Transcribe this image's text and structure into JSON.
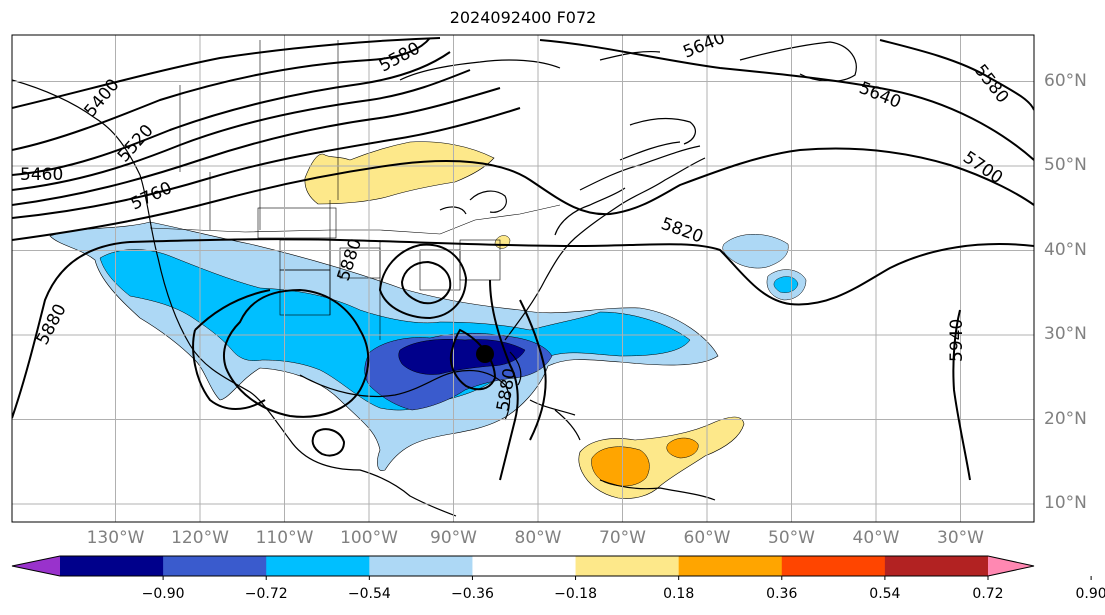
{
  "title": "2024092400 F072",
  "lat_labels": [
    {
      "text": "60°N",
      "lat": 60
    },
    {
      "text": "50°N",
      "lat": 50
    },
    {
      "text": "40°N",
      "lat": 40
    },
    {
      "text": "30°N",
      "lat": 30
    },
    {
      "text": "20°N",
      "lat": 20
    },
    {
      "text": "10°N",
      "lat": 10
    }
  ],
  "lon_labels": [
    {
      "text": "130°W",
      "lon": -130
    },
    {
      "text": "120°W",
      "lon": -120
    },
    {
      "text": "110°W",
      "lon": -110
    },
    {
      "text": "100°W",
      "lon": -100
    },
    {
      "text": "90°W",
      "lon": -90
    },
    {
      "text": "80°W",
      "lon": -80
    },
    {
      "text": "70°W",
      "lon": -70
    },
    {
      "text": "60°W",
      "lon": -60
    },
    {
      "text": "50°W",
      "lon": -50
    },
    {
      "text": "40°W",
      "lon": -40
    },
    {
      "text": "30°W",
      "lon": -30
    }
  ],
  "colorbar": {
    "ticks": [
      "−0.90",
      "−0.72",
      "−0.54",
      "−0.36",
      "−0.18",
      "0.18",
      "0.36",
      "0.54",
      "0.72",
      "0.90"
    ],
    "colors": [
      "#9932cc",
      "#00008b",
      "#3a5bcd",
      "#00bfff",
      "#add8f5",
      "#ffffff",
      "#fde88a",
      "#ffa500",
      "#ff4500",
      "#b22222",
      "#ff88b2"
    ]
  },
  "contour_labels": [
    {
      "text": "5460"
    },
    {
      "text": "5400"
    },
    {
      "text": "5520"
    },
    {
      "text": "5580"
    },
    {
      "text": "5580"
    },
    {
      "text": "5640"
    },
    {
      "text": "5640"
    },
    {
      "text": "5700"
    },
    {
      "text": "5760"
    },
    {
      "text": "5820"
    },
    {
      "text": "5880"
    },
    {
      "text": "5880"
    },
    {
      "text": "5880"
    },
    {
      "text": "5940"
    }
  ],
  "colors": {
    "grid": "#b0b0b0",
    "label_gray": "#808080"
  }
}
